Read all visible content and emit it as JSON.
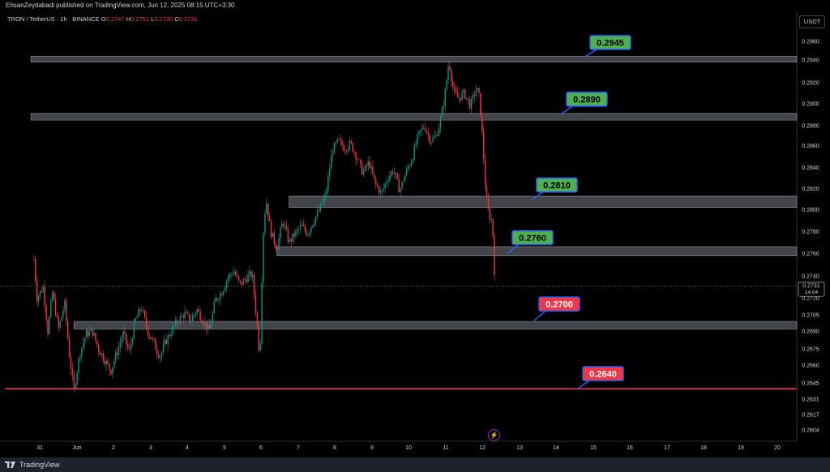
{
  "header": {
    "published": "EhsanZeydabadi published on TradingView.com, Jun 12, 2025 08:15 UTC+3:30"
  },
  "legend": {
    "symbol": "TRON / TetherUS · 1h · BINANCE",
    "o_label": "O",
    "o_value": "0.2747",
    "h_label": "H",
    "h_value": "0.2751",
    "l_label": "L",
    "l_value": "0.2730",
    "c_label": "C",
    "c_value": "0.2731"
  },
  "currency": "USDT",
  "footer": {
    "brand": "TradingView"
  },
  "icons": {
    "bolt": "lightning-bolt-icon",
    "logo": "tradingview-logo-icon"
  },
  "colors": {
    "background": "#000000",
    "bullish": "#089981",
    "bearish": "#f23645",
    "zone": "#787b86",
    "support_line": "#f23645",
    "label_green": "#4caf50",
    "label_red": "#f23645"
  },
  "chart_data": {
    "type": "candlestick",
    "title": "TRON / TetherUS · 1h · BINANCE",
    "x_ticks": [
      "31",
      "Jun",
      "2",
      "3",
      "4",
      "5",
      "6",
      "7",
      "8",
      "9",
      "10",
      "11",
      "12",
      "13",
      "14",
      "15",
      "16",
      "17",
      "18",
      "19",
      "20"
    ],
    "y_ticks": [
      0.296,
      0.294,
      0.292,
      0.29,
      0.288,
      0.286,
      0.284,
      0.282,
      0.28,
      0.278,
      0.276,
      0.274,
      0.272,
      0.2705,
      0.269,
      0.2675,
      0.266,
      0.2645,
      0.2631,
      0.2617,
      0.2604
    ],
    "y_tick_labels": [
      "0.2960",
      "0.2940",
      "0.2920",
      "0.2900",
      "0.2880",
      "0.2860",
      "0.2840",
      "0.2820",
      "0.2800",
      "0.2780",
      "0.2760",
      "0.2740",
      "0.2720",
      "0.2705",
      "0.2690",
      "0.2675",
      "0.2660",
      "0.2645",
      "0.2631",
      "0.2617",
      "0.2604"
    ],
    "ylim": [
      0.2595,
      0.2975
    ],
    "xlim_days": [
      "May 30 18:00",
      "Jun 21 04:00"
    ],
    "last_price": {
      "value": 0.2731,
      "label": "0.2731",
      "countdown": "14:04"
    },
    "price_path": [
      [
        "05-30 20:00",
        0.2755
      ],
      [
        "05-30 22:00",
        0.272
      ],
      [
        "05-31 02:00",
        0.273
      ],
      [
        "05-31 05:00",
        0.269
      ],
      [
        "05-31 08:00",
        0.2725
      ],
      [
        "05-31 12:00",
        0.2692
      ],
      [
        "05-31 16:00",
        0.2715
      ],
      [
        "05-31 19:00",
        0.267
      ],
      [
        "05-31 22:00",
        0.2638
      ],
      [
        "06-01 02:00",
        0.2672
      ],
      [
        "06-01 06:00",
        0.2688
      ],
      [
        "06-01 10:00",
        0.269
      ],
      [
        "06-01 14:00",
        0.2675
      ],
      [
        "06-01 18:00",
        0.2665
      ],
      [
        "06-01 22:00",
        0.2655
      ],
      [
        "06-02 02:00",
        0.2672
      ],
      [
        "06-02 06:00",
        0.2688
      ],
      [
        "06-02 10:00",
        0.2672
      ],
      [
        "06-02 14:00",
        0.27
      ],
      [
        "06-02 18:00",
        0.2712
      ],
      [
        "06-02 22:00",
        0.269
      ],
      [
        "06-03 02:00",
        0.268
      ],
      [
        "06-03 06:00",
        0.2668
      ],
      [
        "06-03 10:00",
        0.2682
      ],
      [
        "06-03 14:00",
        0.2692
      ],
      [
        "06-03 18:00",
        0.27
      ],
      [
        "06-03 22:00",
        0.2706
      ],
      [
        "06-04 02:00",
        0.27
      ],
      [
        "06-04 06:00",
        0.271
      ],
      [
        "06-04 10:00",
        0.27
      ],
      [
        "06-04 14:00",
        0.269
      ],
      [
        "06-04 18:00",
        0.2718
      ],
      [
        "06-04 22:00",
        0.2725
      ],
      [
        "06-05 02:00",
        0.2738
      ],
      [
        "06-05 06:00",
        0.2745
      ],
      [
        "06-05 10:00",
        0.2732
      ],
      [
        "06-05 14:00",
        0.2738
      ],
      [
        "06-05 18:00",
        0.2742
      ],
      [
        "06-05 21:00",
        0.27
      ],
      [
        "06-05 23:00",
        0.2665
      ],
      [
        "06-06 01:00",
        0.2775
      ],
      [
        "06-06 03:00",
        0.281
      ],
      [
        "06-06 06:00",
        0.278
      ],
      [
        "06-06 10:00",
        0.2765
      ],
      [
        "06-06 14:00",
        0.279
      ],
      [
        "06-06 18:00",
        0.277
      ],
      [
        "06-06 22:00",
        0.2778
      ],
      [
        "06-07 02:00",
        0.2785
      ],
      [
        "06-07 06:00",
        0.2778
      ],
      [
        "06-07 10:00",
        0.279
      ],
      [
        "06-07 14:00",
        0.28
      ],
      [
        "06-07 18:00",
        0.2815
      ],
      [
        "06-07 22:00",
        0.2855
      ],
      [
        "06-08 02:00",
        0.2865
      ],
      [
        "06-08 06:00",
        0.2858
      ],
      [
        "06-08 10:00",
        0.2862
      ],
      [
        "06-08 14:00",
        0.285
      ],
      [
        "06-08 18:00",
        0.2835
      ],
      [
        "06-08 22:00",
        0.2845
      ],
      [
        "06-09 02:00",
        0.2825
      ],
      [
        "06-09 06:00",
        0.2815
      ],
      [
        "06-09 10:00",
        0.283
      ],
      [
        "06-09 14:00",
        0.2838
      ],
      [
        "06-09 18:00",
        0.2818
      ],
      [
        "06-09 22:00",
        0.2835
      ],
      [
        "06-10 02:00",
        0.2848
      ],
      [
        "06-10 06:00",
        0.287
      ],
      [
        "06-10 10:00",
        0.288
      ],
      [
        "06-10 14:00",
        0.2865
      ],
      [
        "06-10 18:00",
        0.287
      ],
      [
        "06-10 22:00",
        0.2895
      ],
      [
        "06-11 00:00",
        0.2915
      ],
      [
        "06-11 02:00",
        0.294
      ],
      [
        "06-11 05:00",
        0.2912
      ],
      [
        "06-11 08:00",
        0.2905
      ],
      [
        "06-11 12:00",
        0.291
      ],
      [
        "06-11 16:00",
        0.2898
      ],
      [
        "06-11 20:00",
        0.2915
      ],
      [
        "06-11 22:00",
        0.2905
      ],
      [
        "06-12 00:00",
        0.2865
      ],
      [
        "06-12 02:00",
        0.2815
      ],
      [
        "06-12 04:00",
        0.2795
      ],
      [
        "06-12 06:00",
        0.279
      ],
      [
        "06-12 07:00",
        0.277
      ],
      [
        "06-12 08:00",
        0.2731
      ]
    ],
    "zones": [
      {
        "level": 0.2945,
        "low": 0.2938,
        "high": 0.2944,
        "start": "05-30 18:00",
        "label": "0.2945",
        "label_color": "green"
      },
      {
        "level": 0.289,
        "low": 0.2885,
        "high": 0.2891,
        "start": "05-30 18:00",
        "label": "0.2890",
        "label_color": "green"
      },
      {
        "level": 0.281,
        "low": 0.2802,
        "high": 0.2813,
        "start": "06-06 18:00",
        "label": "0.2810",
        "label_color": "green"
      },
      {
        "level": 0.276,
        "low": 0.2758,
        "high": 0.2766,
        "start": "06-06 10:00",
        "label": "0.2760",
        "label_color": "green"
      },
      {
        "level": 0.27,
        "low": 0.2692,
        "high": 0.2699,
        "start": "05-31 22:00",
        "label": "0.2700",
        "label_color": "red"
      }
    ],
    "support_line": {
      "level": 0.264,
      "label": "0.2640",
      "label_color": "red"
    },
    "grid": false
  }
}
